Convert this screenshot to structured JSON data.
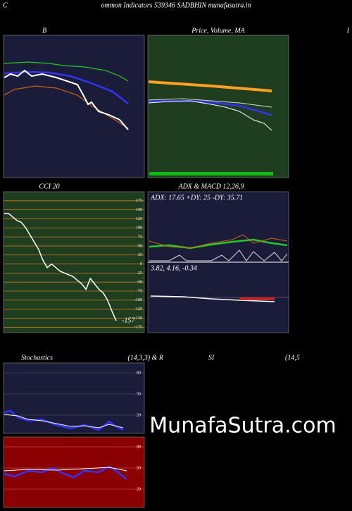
{
  "header": {
    "left": "C",
    "title": "ommon Indicators 539346  SADBHIN  munafasutra.in",
    "right": "I"
  },
  "panels": {
    "bollinger": "B",
    "price": "Price, Volume, MA",
    "adx_title": "ADX  & MACD 12,26,9",
    "adx_text": "ADX: 17.65 +DY: 25 -DY: 35.71",
    "macd_text": "3.82,  4.16,  -0.34",
    "stoch_left": "Stochastics",
    "stoch_right": "(14,3,3) & R",
    "rsi_left": "SI",
    "rsi_right": "(14,5",
    "stoch_ticks": [
      "80",
      "50",
      "20"
    ],
    "rsi_ticks": [
      "80",
      "50",
      "20"
    ]
  },
  "watermark": "MunafaSutra.com",
  "chart_data": {
    "type": "line",
    "title": "CCI 20",
    "values": [
      140,
      140,
      130,
      120,
      115,
      100,
      80,
      60,
      40,
      10,
      -10,
      0,
      -10,
      -20,
      -25,
      -30,
      -35,
      -45,
      -55,
      -70,
      -40,
      -55,
      -70,
      -80,
      -100,
      -130,
      -157
    ],
    "value_label": "-157",
    "color": "#ffffff",
    "grid_color": "#c8781e",
    "ylim": [
      -190,
      200
    ],
    "yticks": [
      175,
      150,
      125,
      100,
      75,
      50,
      25,
      0,
      -25,
      -50,
      -75,
      -100,
      -125,
      -150,
      -175
    ],
    "grid": true
  }
}
